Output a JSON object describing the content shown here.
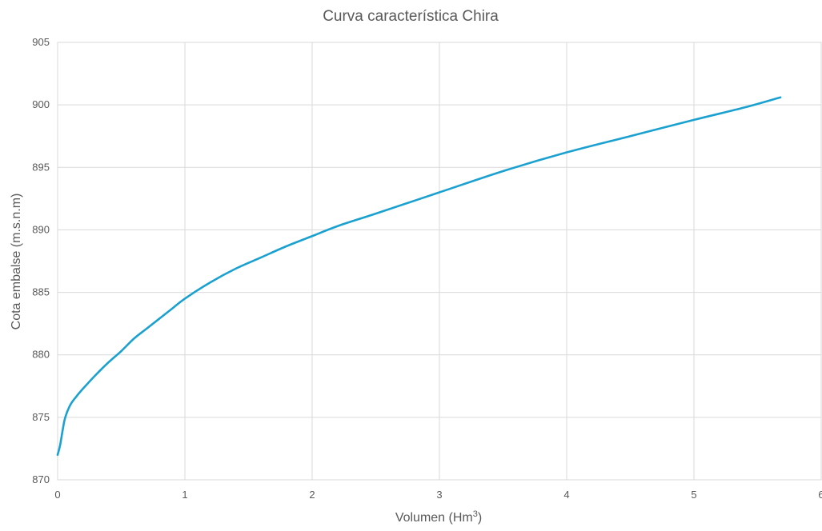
{
  "chart_data": {
    "type": "line",
    "title": "Curva característica Chira",
    "xlabel": "Volumen (Hm",
    "xlabel_sup": "3",
    "xlabel_close": ")",
    "ylabel": "Cota embalse (m.s.n.m)",
    "xlim": [
      0,
      6
    ],
    "ylim": [
      870,
      905
    ],
    "x_ticks": [
      "0",
      "1",
      "2",
      "3",
      "4",
      "5",
      "6"
    ],
    "y_ticks": [
      "870",
      "875",
      "880",
      "885",
      "890",
      "895",
      "900",
      "905"
    ],
    "grid": true,
    "series": [
      {
        "color": "#1ba1d0",
        "x": [
          0,
          0.02,
          0.04,
          0.06,
          0.1,
          0.15,
          0.2,
          0.3,
          0.4,
          0.5,
          0.6,
          0.7,
          0.8,
          0.9,
          1.0,
          1.2,
          1.4,
          1.6,
          1.8,
          2.0,
          2.2,
          2.5,
          3.0,
          3.5,
          4.0,
          4.5,
          5.0,
          5.4,
          5.68
        ],
        "y": [
          872.0,
          872.8,
          874.0,
          875.0,
          876.0,
          876.7,
          877.3,
          878.4,
          879.4,
          880.3,
          881.3,
          882.1,
          882.9,
          883.7,
          884.5,
          885.8,
          886.9,
          887.8,
          888.7,
          889.5,
          890.3,
          891.3,
          893.0,
          894.7,
          896.2,
          897.5,
          898.8,
          899.8,
          900.6
        ]
      }
    ]
  }
}
